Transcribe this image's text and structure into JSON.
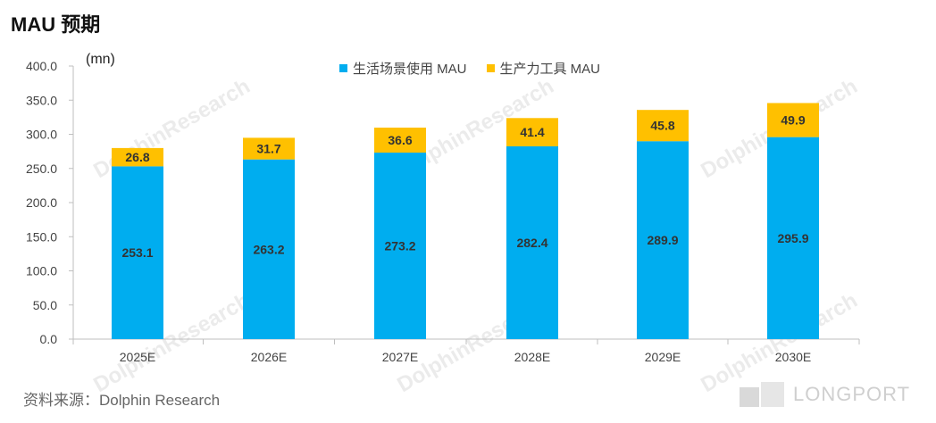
{
  "title": "MAU 预期",
  "unit": "(mn)",
  "source": "资料来源：Dolphin Research",
  "brand": "LONGPORT",
  "watermark": "DolphinResearch",
  "colors": {
    "life": "#00adef",
    "tools": "#ffc000"
  },
  "chart_data": {
    "type": "bar",
    "stacked": true,
    "categories": [
      "2025E",
      "2026E",
      "2027E",
      "2028E",
      "2029E",
      "2030E"
    ],
    "series": [
      {
        "name": "生活场景使用 MAU",
        "values": [
          253.1,
          263.2,
          273.2,
          282.4,
          289.9,
          295.9
        ]
      },
      {
        "name": "生产力工具 MAU",
        "values": [
          26.8,
          31.7,
          36.6,
          41.4,
          45.8,
          49.9
        ]
      }
    ],
    "data_labels": [
      [
        "253.1",
        "263.2",
        "273.2",
        "282.4",
        "289.9",
        "295.9"
      ],
      [
        "26.8",
        "31.7",
        "36.6",
        "41.4",
        "45.8",
        "49.9"
      ]
    ],
    "ylim": [
      0,
      400
    ],
    "yticks": [
      "0.0",
      "50.0",
      "100.0",
      "150.0",
      "200.0",
      "250.0",
      "300.0",
      "350.0",
      "400.0"
    ],
    "ytick_values": [
      0,
      50,
      100,
      150,
      200,
      250,
      300,
      350,
      400
    ],
    "ylabel": "(mn)",
    "legend": "top-center"
  }
}
